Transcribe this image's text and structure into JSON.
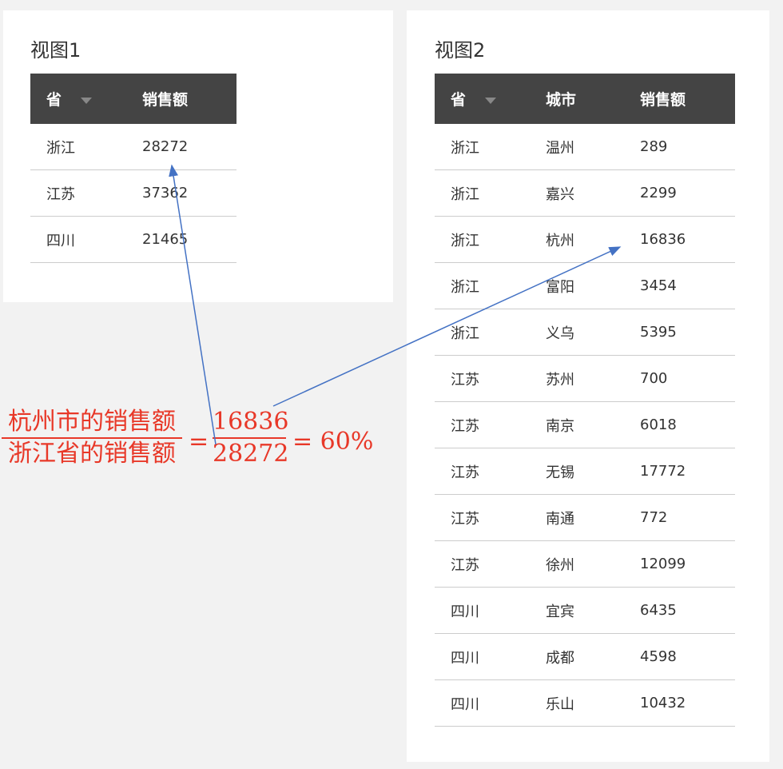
{
  "view1": {
    "title": "视图1",
    "headers": [
      "省",
      "销售额"
    ],
    "rows": [
      [
        "浙江",
        "28272"
      ],
      [
        "江苏",
        "37362"
      ],
      [
        "四川",
        "21465"
      ]
    ]
  },
  "view2": {
    "title": "视图2",
    "headers": [
      "省",
      "城市",
      "销售额"
    ],
    "rows": [
      [
        "浙江",
        "温州",
        "289"
      ],
      [
        "浙江",
        "嘉兴",
        "2299"
      ],
      [
        "浙江",
        "杭州",
        "16836"
      ],
      [
        "浙江",
        "富阳",
        "3454"
      ],
      [
        "浙江",
        "义乌",
        "5395"
      ],
      [
        "江苏",
        "苏州",
        "700"
      ],
      [
        "江苏",
        "南京",
        "6018"
      ],
      [
        "江苏",
        "无锡",
        "17772"
      ],
      [
        "江苏",
        "南通",
        "772"
      ],
      [
        "江苏",
        "徐州",
        "12099"
      ],
      [
        "四川",
        "宜宾",
        "6435"
      ],
      [
        "四川",
        "成都",
        "4598"
      ],
      [
        "四川",
        "乐山",
        "10432"
      ]
    ]
  },
  "formula": {
    "num_text": "杭州市的销售额",
    "den_text": "浙江省的销售额",
    "eq1": "=",
    "num_val": "16836",
    "den_val": "28272",
    "result": "= 60%",
    "color": "#e83828"
  },
  "arrow_color": "#4472c4"
}
